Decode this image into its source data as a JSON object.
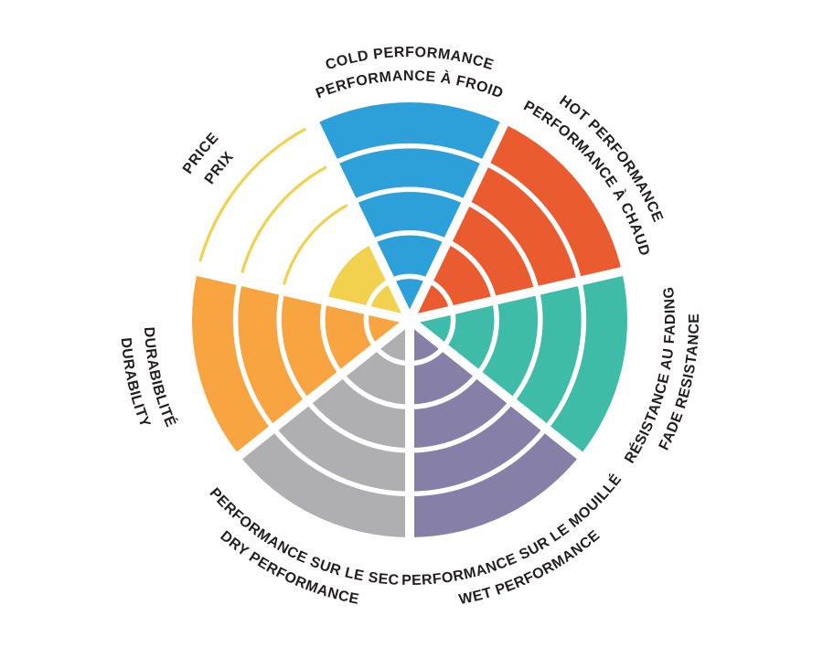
{
  "figure": {
    "description": "Bilingual product performance rating wheel with seven sectors and five rating rings"
  },
  "colors": {
    "background": "#ffffff",
    "separator": "#ffffff",
    "label_text": "#231f20"
  },
  "chart_data": {
    "type": "radar",
    "subtype": "segmented-polar-wheel",
    "direction": "clockwise",
    "start_angle_deg": 0,
    "max_rings": 5,
    "grid": "concentric-white-ring-separators",
    "legend_position": "none",
    "categories": [
      {
        "id": "cold-performance",
        "label_outer": "COLD PERFORMANCE",
        "label_inner": "PERFORMANCE À FROID",
        "value": 5,
        "color": "#2D9FD9",
        "label_flow": "clockwise"
      },
      {
        "id": "hot-performance",
        "label_outer": "HOT PERFORMANCE",
        "label_inner": "PERFORMANCE À CHAUD",
        "value": 5,
        "color": "#EA5B2F",
        "label_flow": "clockwise"
      },
      {
        "id": "fade-resistance",
        "label_outer": "FADE RESISTANCE",
        "label_inner": "RÉSISTANCE AU FADING",
        "value": 5,
        "color": "#3FBCA7",
        "label_flow": "counterclockwise"
      },
      {
        "id": "wet-performance",
        "label_outer": "WET PERFORMANCE",
        "label_inner": "PERFORMANCE SUR LE MOUILLÉ",
        "value": 5,
        "color": "#8680A8",
        "label_flow": "counterclockwise"
      },
      {
        "id": "dry-performance",
        "label_outer": "DRY PERFORMANCE",
        "label_inner": "PERFORMANCE SUR LE SEC",
        "value": 5,
        "color": "#AFAEB0",
        "label_flow": "counterclockwise"
      },
      {
        "id": "durability",
        "label_outer": "DURABILITY",
        "label_inner": "DURABIBLITÉ",
        "value": 5,
        "color": "#F8A440",
        "label_flow": "counterclockwise"
      },
      {
        "id": "price",
        "label_outer": "PRICE",
        "label_inner": "PRIX",
        "value": 2,
        "color": "#F2D14F",
        "label_flow": "clockwise",
        "unfilled_ring_style": "outline-arcs"
      }
    ]
  }
}
